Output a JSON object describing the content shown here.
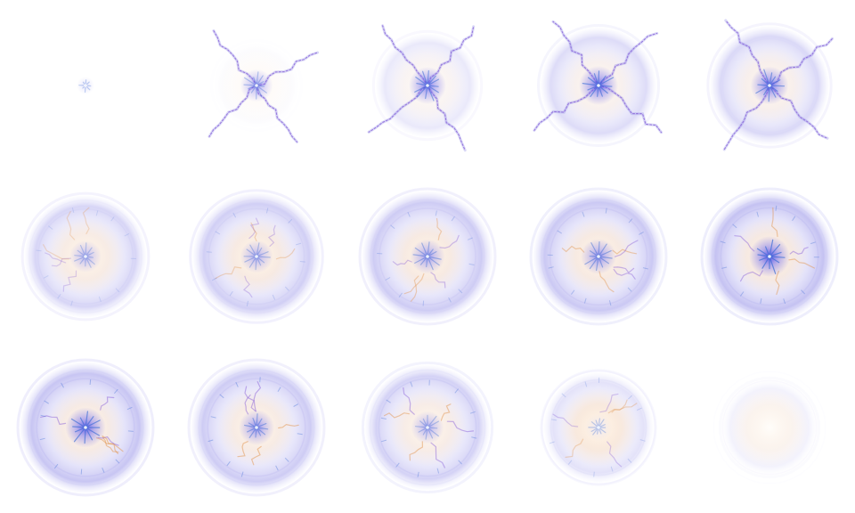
{
  "sheet": {
    "type": "sprite-sheet",
    "effect": "electric-burst-explosion",
    "columns": 5,
    "rows": 3,
    "background": "#ffffff",
    "colors": {
      "halo": "#b9b6f2",
      "halo_dark": "#8f8ae6",
      "core": "#6d63e8",
      "core_bright": "#3a2fe0",
      "warm": "#f6c89a",
      "spark": "#3f6fd6",
      "lightning_orange": "#e2934a",
      "lightning_purple": "#8a62d8"
    },
    "frames": [
      {
        "index": 1,
        "stage": "spark",
        "halo": 0.0,
        "core": 0.15,
        "warm": 0.0,
        "tendrils": 0.0,
        "ring": 0.0
      },
      {
        "index": 2,
        "stage": "ignite",
        "halo": 0.05,
        "core": 0.45,
        "warm": 0.1,
        "tendrils": 0.75,
        "ring": 0.0
      },
      {
        "index": 3,
        "stage": "expand",
        "halo": 0.35,
        "core": 0.7,
        "warm": 0.25,
        "tendrils": 0.9,
        "ring": 0.0
      },
      {
        "index": 4,
        "stage": "expand",
        "halo": 0.55,
        "core": 0.8,
        "warm": 0.35,
        "tendrils": 1.0,
        "ring": 0.0
      },
      {
        "index": 5,
        "stage": "expand",
        "halo": 0.6,
        "core": 0.75,
        "warm": 0.4,
        "tendrils": 1.0,
        "ring": 0.1
      },
      {
        "index": 6,
        "stage": "burst",
        "halo": 0.65,
        "core": 0.4,
        "warm": 0.55,
        "tendrils": 0.0,
        "ring": 0.3
      },
      {
        "index": 7,
        "stage": "burst",
        "halo": 0.75,
        "core": 0.45,
        "warm": 0.6,
        "tendrils": 0.0,
        "ring": 0.4
      },
      {
        "index": 8,
        "stage": "burst",
        "halo": 0.8,
        "core": 0.55,
        "warm": 0.6,
        "tendrils": 0.0,
        "ring": 0.5
      },
      {
        "index": 9,
        "stage": "burst",
        "halo": 0.85,
        "core": 0.6,
        "warm": 0.6,
        "tendrils": 0.0,
        "ring": 0.6
      },
      {
        "index": 10,
        "stage": "peak",
        "halo": 0.95,
        "core": 0.9,
        "warm": 0.6,
        "tendrils": 0.0,
        "ring": 0.65
      },
      {
        "index": 11,
        "stage": "peak",
        "halo": 0.9,
        "core": 0.85,
        "warm": 0.55,
        "tendrils": 0.0,
        "ring": 0.7
      },
      {
        "index": 12,
        "stage": "dissipate",
        "halo": 0.8,
        "core": 0.6,
        "warm": 0.55,
        "tendrils": 0.0,
        "ring": 0.7
      },
      {
        "index": 13,
        "stage": "dissipate",
        "halo": 0.7,
        "core": 0.45,
        "warm": 0.5,
        "tendrils": 0.0,
        "ring": 0.65
      },
      {
        "index": 14,
        "stage": "fade",
        "halo": 0.45,
        "core": 0.1,
        "warm": 0.7,
        "tendrils": 0.0,
        "ring": 0.4
      },
      {
        "index": 15,
        "stage": "fade",
        "halo": 0.2,
        "core": 0.0,
        "warm": 0.35,
        "tendrils": 0.0,
        "ring": 0.2
      }
    ]
  }
}
